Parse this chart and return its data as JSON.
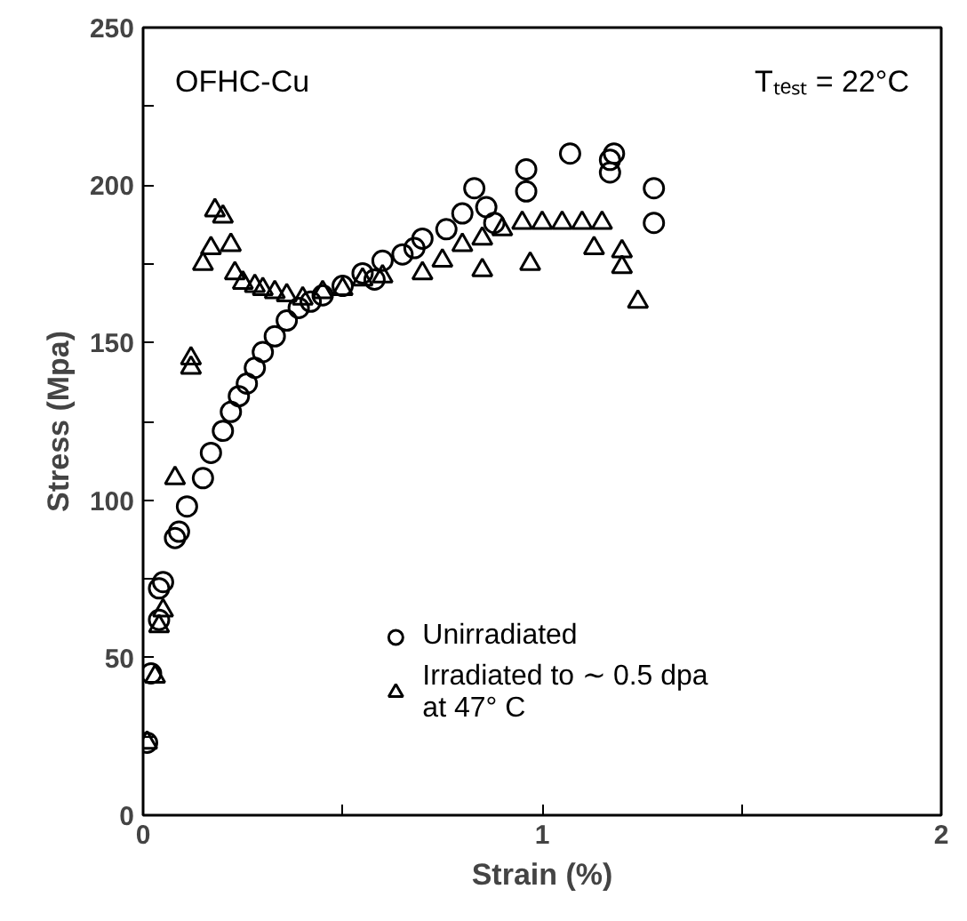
{
  "chart_data": {
    "type": "scatter",
    "xlabel": "Strain (%)",
    "ylabel": "Stress (Mpa)",
    "annotations": [
      "OFHC-Cu",
      "Tₜₑₛₜ = 22°C"
    ],
    "xlim": [
      0,
      2
    ],
    "ylim": [
      0,
      250
    ],
    "xticks": [
      0,
      {
        "value": 0.5,
        "label": null
      },
      1,
      {
        "value": 1.5,
        "label": null
      },
      2
    ],
    "yticks": [
      0,
      {
        "value": 25,
        "label": null
      },
      50,
      {
        "value": 75,
        "label": null
      },
      100,
      {
        "value": 125,
        "label": null
      },
      150,
      {
        "value": 175,
        "label": null
      },
      200,
      {
        "value": 225,
        "label": null
      },
      250
    ],
    "grid": false,
    "legend": "bottom",
    "series": [
      {
        "name": "Unirradiated",
        "color": "#000000",
        "marker": "circle",
        "x": [
          0.01,
          0.02,
          0.04,
          0.04,
          0.05,
          0.08,
          0.09,
          0.11,
          0.15,
          0.17,
          0.2,
          0.22,
          0.24,
          0.26,
          0.28,
          0.3,
          0.33,
          0.36,
          0.39,
          0.42,
          0.45,
          0.5,
          0.55,
          0.58,
          0.6,
          0.65,
          0.68,
          0.7,
          0.76,
          0.8,
          0.83,
          0.86,
          0.88,
          0.96,
          0.96,
          1.07,
          1.17,
          1.17,
          1.18,
          1.28,
          1.28
        ],
        "values": [
          23,
          45,
          62,
          72,
          74,
          88,
          90,
          98,
          107,
          115,
          122,
          128,
          133,
          137,
          142,
          147,
          152,
          157,
          161,
          163,
          165,
          168,
          172,
          170,
          176,
          178,
          180,
          183,
          186,
          191,
          199,
          193,
          188,
          198,
          205,
          210,
          204,
          208,
          210,
          188,
          199
        ]
      },
      {
        "name": "Irradiated to ∼ 0.5 dpa\nat 47° C",
        "color": "#000000",
        "marker": "triangle",
        "x": [
          0.01,
          0.03,
          0.04,
          0.05,
          0.08,
          0.12,
          0.12,
          0.15,
          0.17,
          0.18,
          0.2,
          0.22,
          0.23,
          0.25,
          0.28,
          0.3,
          0.33,
          0.36,
          0.4,
          0.45,
          0.5,
          0.55,
          0.6,
          0.7,
          0.75,
          0.8,
          0.85,
          0.85,
          0.9,
          0.95,
          0.97,
          1.0,
          1.05,
          1.1,
          1.13,
          1.15,
          1.2,
          1.2,
          1.24
        ],
        "values": [
          23,
          44,
          60,
          65,
          107,
          142,
          145,
          175,
          180,
          192,
          190,
          181,
          172,
          169,
          168,
          167,
          166,
          165,
          164,
          166,
          167,
          170,
          171,
          172,
          176,
          181,
          183,
          173,
          186,
          188,
          175,
          188,
          188,
          188,
          180,
          188,
          179,
          174,
          163
        ]
      }
    ]
  }
}
